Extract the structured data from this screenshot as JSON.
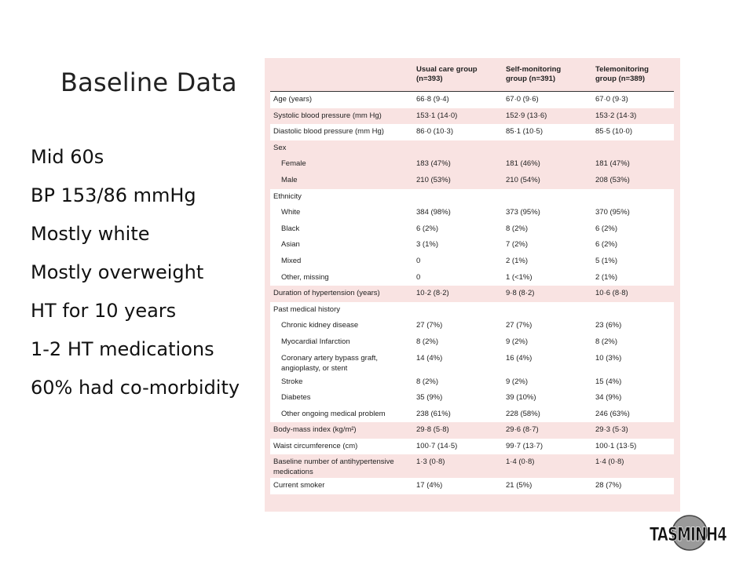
{
  "slide": {
    "title": "Baseline Data",
    "bullets": [
      "Mid 60s",
      "BP 153/86 mmHg",
      "Mostly white",
      "Mostly overweight",
      "HT for 10 years",
      "1-2 HT medications",
      "60% had co-morbidity"
    ]
  },
  "table": {
    "columns": [
      {
        "line1": "Usual care group",
        "line2": "(n=393)"
      },
      {
        "line1": "Self-monitoring",
        "line2": "group (n=391)"
      },
      {
        "line1": "Telemonitoring",
        "line2": "group (n=389)"
      }
    ],
    "rows": [
      {
        "label": "Age (years)",
        "values": [
          "66·8 (9·4)",
          "67·0 (9·6)",
          "67·0 (9·3)"
        ],
        "indent": false,
        "shade": "white"
      },
      {
        "label": "Systolic blood pressure (mm Hg)",
        "values": [
          "153·1 (14·0)",
          "152·9 (13·6)",
          "153·2 (14·3)"
        ],
        "indent": false,
        "shade": "pink"
      },
      {
        "label": "Diastolic blood pressure (mm Hg)",
        "values": [
          "86·0 (10·3)",
          "85·1 (10·5)",
          "85·5 (10·0)"
        ],
        "indent": false,
        "shade": "white"
      },
      {
        "label": "Sex",
        "values": [
          "",
          "",
          ""
        ],
        "indent": false,
        "shade": "pink"
      },
      {
        "label": "Female",
        "values": [
          "183 (47%)",
          "181 (46%)",
          "181 (47%)"
        ],
        "indent": true,
        "shade": "pink"
      },
      {
        "label": "Male",
        "values": [
          "210 (53%)",
          "210 (54%)",
          "208 (53%)"
        ],
        "indent": true,
        "shade": "pink"
      },
      {
        "label": "Ethnicity",
        "values": [
          "",
          "",
          ""
        ],
        "indent": false,
        "shade": "white"
      },
      {
        "label": "White",
        "values": [
          "384 (98%)",
          "373 (95%)",
          "370 (95%)"
        ],
        "indent": true,
        "shade": "white"
      },
      {
        "label": "Black",
        "values": [
          "6 (2%)",
          "8 (2%)",
          "6 (2%)"
        ],
        "indent": true,
        "shade": "white"
      },
      {
        "label": "Asian",
        "values": [
          "3 (1%)",
          "7 (2%)",
          "6 (2%)"
        ],
        "indent": true,
        "shade": "white"
      },
      {
        "label": "Mixed",
        "values": [
          "0",
          "2 (1%)",
          "5 (1%)"
        ],
        "indent": true,
        "shade": "white"
      },
      {
        "label": "Other, missing",
        "values": [
          "0",
          "1 (<1%)",
          "2 (1%)"
        ],
        "indent": true,
        "shade": "white"
      },
      {
        "label": "Duration of hypertension (years)",
        "values": [
          "10·2 (8·2)",
          "9·8 (8·2)",
          "10·6 (8·8)"
        ],
        "indent": false,
        "shade": "pink"
      },
      {
        "label": "Past medical history",
        "values": [
          "",
          "",
          ""
        ],
        "indent": false,
        "shade": "white"
      },
      {
        "label": "Chronic kidney disease",
        "values": [
          "27 (7%)",
          "27 (7%)",
          "23 (6%)"
        ],
        "indent": true,
        "shade": "white"
      },
      {
        "label": "Myocardial Infarction",
        "values": [
          "8 (2%)",
          "9 (2%)",
          "8 (2%)"
        ],
        "indent": true,
        "shade": "white"
      },
      {
        "label": "Coronary artery bypass graft, angioplasty, or stent",
        "values": [
          "14 (4%)",
          "16 (4%)",
          "10 (3%)"
        ],
        "indent": true,
        "shade": "white",
        "two": true
      },
      {
        "label": "Stroke",
        "values": [
          "8 (2%)",
          "9 (2%)",
          "15 (4%)"
        ],
        "indent": true,
        "shade": "white"
      },
      {
        "label": "Diabetes",
        "values": [
          "35 (9%)",
          "39 (10%)",
          "34 (9%)"
        ],
        "indent": true,
        "shade": "white"
      },
      {
        "label": "Other ongoing medical problem",
        "values": [
          "238 (61%)",
          "228 (58%)",
          "246 (63%)"
        ],
        "indent": true,
        "shade": "white"
      },
      {
        "label": "Body-mass index (kg/m²)",
        "values": [
          "29·8 (5·8)",
          "29·6 (8·7)",
          "29·3 (5·3)"
        ],
        "indent": false,
        "shade": "pink"
      },
      {
        "label": "Waist circumference (cm)",
        "values": [
          "100·7 (14·5)",
          "99·7 (13·7)",
          "100·1 (13·5)"
        ],
        "indent": false,
        "shade": "white"
      },
      {
        "label": "Baseline number of antihypertensive medications",
        "values": [
          "1·3 (0·8)",
          "1·4 (0·8)",
          "1·4 (0·8)"
        ],
        "indent": false,
        "shade": "pink",
        "two": true
      },
      {
        "label": "Current smoker",
        "values": [
          "17 (4%)",
          "21 (5%)",
          "28 (7%)"
        ],
        "indent": false,
        "shade": "white"
      }
    ]
  },
  "logo": {
    "text": "TASMINH4"
  }
}
